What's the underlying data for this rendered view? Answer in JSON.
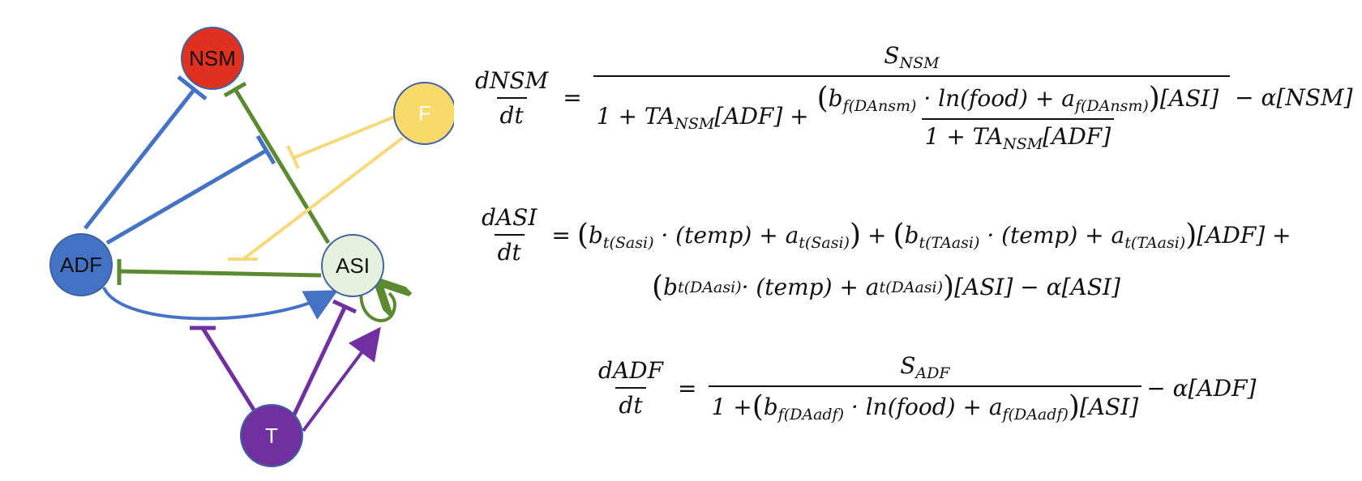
{
  "nodes": {
    "nsm": {
      "label": "NSM",
      "color": "#e03020"
    },
    "f": {
      "label": "F",
      "color": "#fad96b"
    },
    "adf": {
      "label": "ADF",
      "color": "#4472c4"
    },
    "asi": {
      "label": "ASI",
      "color": "#e7f0dc"
    },
    "t": {
      "label": "T",
      "color": "#7030a0"
    }
  },
  "edge_colors": {
    "blue": "#4472c4",
    "green": "#5b8a30",
    "yellow": "#f7d97a",
    "purple": "#7030a0"
  },
  "equations": {
    "nsm": {
      "lhs_num": "dNSM",
      "lhs_den": "dt",
      "eq": "=",
      "frac_num": "S",
      "frac_num_sub": "NSM",
      "den_one_plus": "1 + TA",
      "den_ta_sub": "NSM",
      "den_bracket": "[ADF] +",
      "inner_num_b": "b",
      "inner_num_b_sub": "f(DAnsm)",
      "inner_num_mid": " · ln(food) + a",
      "inner_num_a_sub": "f(DAnsm)",
      "inner_num_tail": "[ASI]",
      "inner_den": "1 + TA",
      "inner_den_sub": "NSM",
      "inner_den_tail": "[ADF]",
      "rhs": "− α[NSM]"
    },
    "asi": {
      "lhs_num": "dASI",
      "lhs_den": "dt",
      "eq": "=",
      "t1_b": "b",
      "t1_b_sub": "t(Sasi)",
      "t1_mid": " · (temp) + a",
      "t1_a_sub": "t(Sasi)",
      "plus1": "+",
      "t2_b": "b",
      "t2_b_sub": "t(TAasi)",
      "t2_mid": " · (temp) + a",
      "t2_a_sub": "t(TAasi)",
      "t2_tail": "[ADF] +",
      "t3_b": "b",
      "t3_b_sub": "t(DAasi)",
      "t3_mid": " · (temp) + a",
      "t3_a_sub": "t(DAasi)",
      "t3_tail": "[ASI] − α[ASI]"
    },
    "adf": {
      "lhs_num": "dADF",
      "lhs_den": "dt",
      "eq": "=",
      "frac_num": "S",
      "frac_num_sub": "ADF",
      "den_one_plus": "1 +",
      "den_b": "b",
      "den_b_sub": "f(DAadf)",
      "den_mid": " · ln(food) + a",
      "den_a_sub": "f(DAadf)",
      "den_tail": "[ASI]",
      "rhs": "− α[ADF]"
    }
  }
}
